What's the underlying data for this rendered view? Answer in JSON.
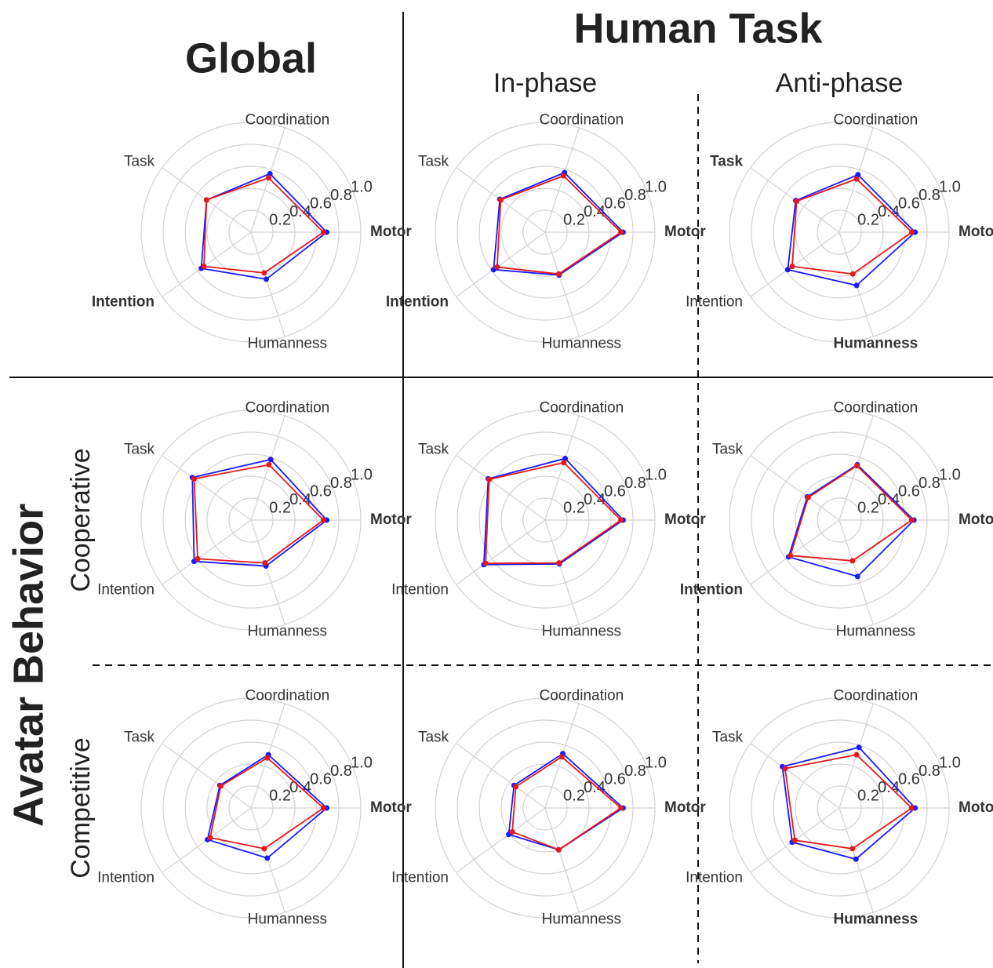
{
  "headers": {
    "global": "Global",
    "human_task": "Human Task",
    "in_phase": "In-phase",
    "anti_phase": "Anti-phase",
    "avatar_behavior": "Avatar Behavior",
    "cooperative": "Cooperative",
    "competitive": "Competitive"
  },
  "chart_data": [
    {
      "type": "radar",
      "categories": [
        "Motor",
        "Coordination",
        "Task",
        "Intention",
        "Humanness"
      ],
      "bold_categories": [
        0,
        3
      ],
      "ylim": [
        0,
        1
      ],
      "yticks": [
        0.2,
        0.4,
        0.6,
        0.8,
        {
          "value": 1,
          "label": "1.0"
        }
      ],
      "grid": true,
      "series": [
        {
          "color": "#1a1aff",
          "values": [
            0.69,
            0.56,
            0.5,
            0.56,
            0.45
          ]
        },
        {
          "color": "#e4191c",
          "values": [
            0.66,
            0.52,
            0.5,
            0.53,
            0.39
          ]
        }
      ]
    },
    {
      "type": "radar",
      "categories": [
        "Motor",
        "Coordination",
        "Task",
        "Intention",
        "Humanness"
      ],
      "bold_categories": [
        0,
        3
      ],
      "ylim": [
        0,
        1
      ],
      "yticks": [
        0.2,
        0.4,
        0.6,
        0.8,
        {
          "value": 1,
          "label": "1.0"
        }
      ],
      "grid": true,
      "series": [
        {
          "color": "#1a1aff",
          "values": [
            0.71,
            0.57,
            0.51,
            0.58,
            0.41
          ]
        },
        {
          "color": "#e4191c",
          "values": [
            0.69,
            0.54,
            0.5,
            0.54,
            0.4
          ]
        }
      ]
    },
    {
      "type": "radar",
      "categories": [
        "Motor",
        "Coordination",
        "Task",
        "Intention",
        "Humanness"
      ],
      "bold_categories": [
        0,
        2,
        4
      ],
      "ylim": [
        0,
        1
      ],
      "yticks": [
        0.2,
        0.4,
        0.6,
        0.8,
        {
          "value": 1,
          "label": "1.0"
        }
      ],
      "grid": true,
      "series": [
        {
          "color": "#1a1aff",
          "values": [
            0.69,
            0.55,
            0.49,
            0.58,
            0.51
          ]
        },
        {
          "color": "#e4191c",
          "values": [
            0.66,
            0.51,
            0.48,
            0.53,
            0.4
          ]
        }
      ]
    },
    {
      "type": "radar",
      "categories": [
        "Motor",
        "Coordination",
        "Task",
        "Intention",
        "Humanness"
      ],
      "bold_categories": [
        0
      ],
      "ylim": [
        0,
        1
      ],
      "yticks": [
        0.2,
        0.4,
        0.6,
        0.8,
        {
          "value": 1,
          "label": "1.0"
        }
      ],
      "grid": true,
      "series": [
        {
          "color": "#1a1aff",
          "values": [
            0.69,
            0.58,
            0.66,
            0.64,
            0.44
          ]
        },
        {
          "color": "#e4191c",
          "values": [
            0.66,
            0.53,
            0.64,
            0.6,
            0.41
          ]
        }
      ]
    },
    {
      "type": "radar",
      "categories": [
        "Motor",
        "Coordination",
        "Task",
        "Intention",
        "Humanness"
      ],
      "bold_categories": [
        0
      ],
      "ylim": [
        0,
        1
      ],
      "yticks": [
        0.2,
        0.4,
        0.6,
        0.8,
        {
          "value": 1,
          "label": "1.0"
        }
      ],
      "grid": true,
      "series": [
        {
          "color": "#1a1aff",
          "values": [
            0.71,
            0.59,
            0.64,
            0.69,
            0.42
          ]
        },
        {
          "color": "#e4191c",
          "values": [
            0.69,
            0.55,
            0.63,
            0.67,
            0.41
          ]
        }
      ]
    },
    {
      "type": "radar",
      "categories": [
        "Motor",
        "Coordination",
        "Task",
        "Intention",
        "Humanness"
      ],
      "bold_categories": [
        0,
        3
      ],
      "ylim": [
        0,
        1
      ],
      "yticks": [
        0.2,
        0.4,
        0.6,
        0.8,
        {
          "value": 1,
          "label": "1.0"
        }
      ],
      "grid": true,
      "series": [
        {
          "color": "#1a1aff",
          "values": [
            0.68,
            0.53,
            0.36,
            0.57,
            0.54
          ]
        },
        {
          "color": "#e4191c",
          "values": [
            0.66,
            0.52,
            0.35,
            0.55,
            0.39
          ]
        }
      ]
    },
    {
      "type": "radar",
      "categories": [
        "Motor",
        "Coordination",
        "Task",
        "Intention",
        "Humanness"
      ],
      "bold_categories": [
        0
      ],
      "ylim": [
        0,
        1
      ],
      "yticks": [
        0.2,
        0.4,
        0.6,
        0.8,
        {
          "value": 1,
          "label": "1.0"
        }
      ],
      "grid": true,
      "series": [
        {
          "color": "#1a1aff",
          "values": [
            0.69,
            0.51,
            0.35,
            0.49,
            0.48
          ]
        },
        {
          "color": "#e4191c",
          "values": [
            0.66,
            0.48,
            0.34,
            0.46,
            0.39
          ]
        }
      ]
    },
    {
      "type": "radar",
      "categories": [
        "Motor",
        "Coordination",
        "Task",
        "Intention",
        "Humanness"
      ],
      "bold_categories": [
        0
      ],
      "ylim": [
        0,
        1
      ],
      "yticks": [
        0.2,
        0.4,
        0.6,
        0.8,
        {
          "value": 1,
          "label": "1.0"
        }
      ],
      "grid": true,
      "series": [
        {
          "color": "#1a1aff",
          "values": [
            0.71,
            0.52,
            0.35,
            0.41,
            0.4
          ]
        },
        {
          "color": "#e4191c",
          "values": [
            0.69,
            0.49,
            0.33,
            0.37,
            0.4
          ]
        }
      ]
    },
    {
      "type": "radar",
      "categories": [
        "Motor",
        "Coordination",
        "Task",
        "Intention",
        "Humanness"
      ],
      "bold_categories": [
        0,
        4
      ],
      "ylim": [
        0,
        1
      ],
      "yticks": [
        0.2,
        0.4,
        0.6,
        0.8,
        {
          "value": 1,
          "label": "1.0"
        }
      ],
      "grid": true,
      "series": [
        {
          "color": "#1a1aff",
          "values": [
            0.69,
            0.58,
            0.64,
            0.53,
            0.49
          ]
        },
        {
          "color": "#e4191c",
          "values": [
            0.66,
            0.51,
            0.61,
            0.5,
            0.39
          ]
        }
      ]
    }
  ]
}
